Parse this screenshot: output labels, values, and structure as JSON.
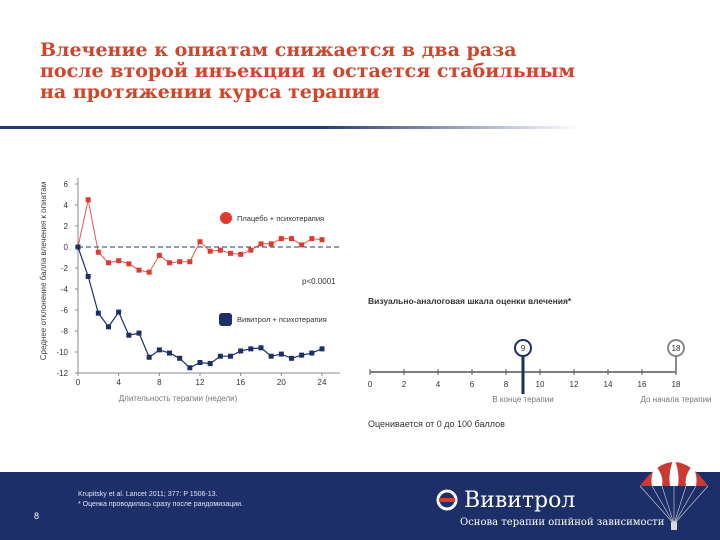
{
  "title_lines": [
    "Влечение к опиатам снижается в два раза",
    "после второй инъекции и остается стабильным",
    "на протяжении курса терапии"
  ],
  "chart_data": [
    {
      "type": "line",
      "ylabel": "Среднее отклонение балла влечения к опиатам",
      "xlabel": "Длительность терапии (недели)",
      "ylim": [
        -12,
        6
      ],
      "xlim": [
        0,
        24
      ],
      "yticks": [
        6,
        4,
        2,
        0,
        -2,
        -4,
        -6,
        -8,
        -10,
        -12
      ],
      "xticks": [
        0,
        4,
        8,
        12,
        16,
        20,
        24
      ],
      "pvalue": "p<0.0001",
      "series": [
        {
          "name": "Плацебо + психотерапия",
          "color": "#e03a2f",
          "x": [
            1,
            2,
            3,
            4,
            5,
            6,
            7,
            8,
            9,
            10,
            11,
            12,
            13,
            14,
            15,
            16,
            17,
            18,
            19,
            20,
            21,
            22,
            23,
            24
          ],
          "y": [
            4.5,
            -0.5,
            -1.5,
            -1.3,
            -1.6,
            -2.2,
            -2.4,
            -0.8,
            -1.5,
            -1.4,
            -1.4,
            0.5,
            -0.4,
            -0.3,
            -0.6,
            -0.7,
            -0.3,
            0.3,
            0.3,
            0.8,
            0.8,
            0.2,
            0.8,
            0.7
          ]
        },
        {
          "name": "Вивитрол + психотерапия",
          "color": "#1c2f68",
          "x": [
            1,
            2,
            3,
            4,
            5,
            6,
            7,
            8,
            9,
            10,
            11,
            12,
            13,
            14,
            15,
            16,
            17,
            18,
            19,
            20,
            21,
            22,
            23,
            24
          ],
          "y": [
            -2.8,
            -6.3,
            -7.6,
            -6.2,
            -8.4,
            -8.2,
            -10.5,
            -9.8,
            -10.1,
            -10.6,
            -11.5,
            -11.0,
            -11.1,
            -10.4,
            -10.4,
            -9.9,
            -9.7,
            -9.6,
            -10.4,
            -10.2,
            -10.6,
            -10.3,
            -10.1,
            -9.7
          ]
        }
      ],
      "start": [
        0,
        0
      ]
    },
    {
      "type": "scale",
      "title": "Визуально-аналоговая шкала оценки влечения*",
      "xlim": [
        0,
        18
      ],
      "ticks": [
        0,
        2,
        4,
        6,
        8,
        10,
        12,
        14,
        16,
        18
      ],
      "markers": [
        {
          "value": 9,
          "label": "9",
          "caption": "В конце терапии",
          "color": "#1c2f68"
        },
        {
          "value": 18,
          "label": "18",
          "caption": "До начала терапии",
          "color": "#8a8a8a"
        }
      ],
      "note": "Оценивается от 0 до 100 баллов"
    }
  ],
  "footer": {
    "refs": [
      "Krupitsky et al. Lancet 2011; 377: P 1506-13.",
      "* Оценка проводилась сразу после рандомизации."
    ],
    "page_number": "8",
    "brand": "Вивитрол",
    "tagline": "Основа терапии опийной зависимости"
  },
  "colors": {
    "title": "#d0452b",
    "footer_bg": "#1c2f68",
    "placebo": "#e03a2f",
    "vivitrol": "#1c2f68"
  }
}
